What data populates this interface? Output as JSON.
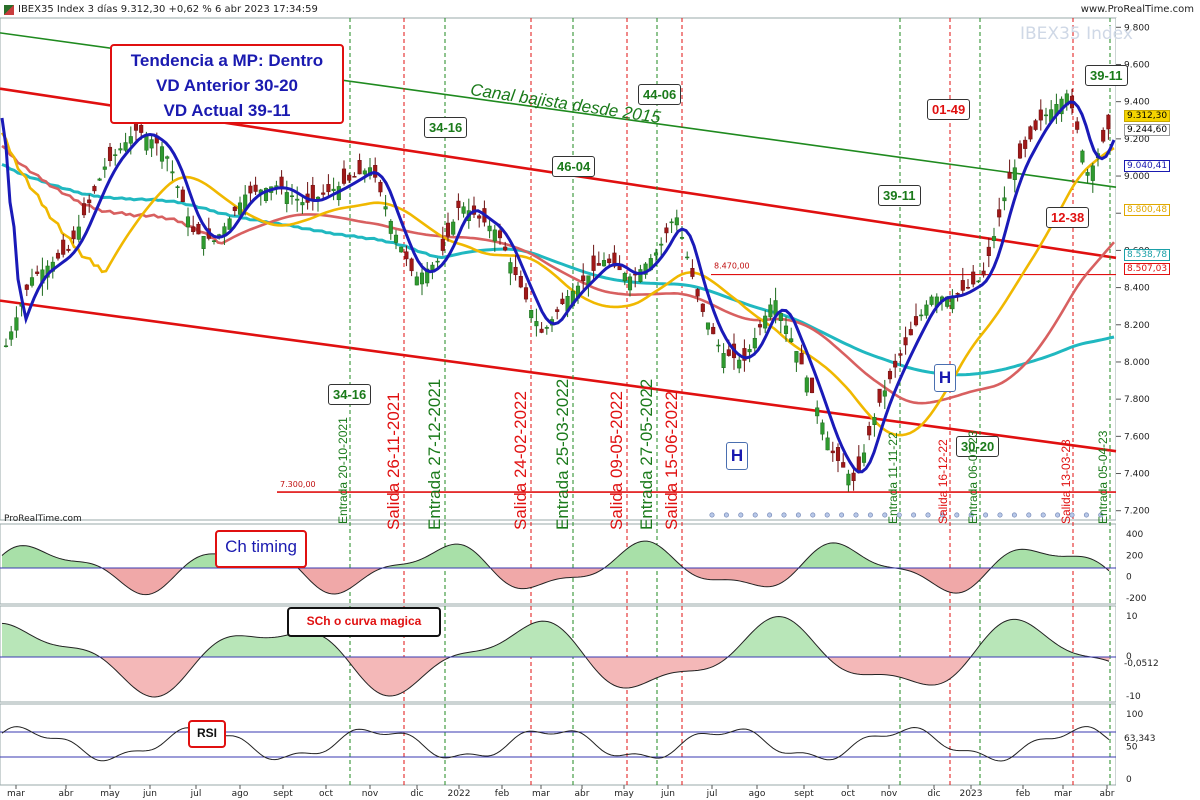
{
  "header": {
    "title": "IBEX35 Index 3 días 9.312,30 +0,62 % 6 abr 2023 17:34:59",
    "site": "www.ProRealTime.com"
  },
  "watermark": "IBEX35 Index",
  "source": "ProRealTime.com",
  "trend_box": {
    "line1": "Tendencia a MP: Dentro",
    "line2": "VD Anterior 30-20",
    "line3": "VD Actual 39-11"
  },
  "canal_label": "Canal bajista desde 2015",
  "cycle_labels": [
    {
      "text": "34-16",
      "color": "green"
    },
    {
      "text": "44-06",
      "color": "green"
    },
    {
      "text": "34-16",
      "color": "green"
    },
    {
      "text": "46-04",
      "color": "green"
    },
    {
      "text": "39-11",
      "color": "green"
    },
    {
      "text": "01-49",
      "color": "red"
    },
    {
      "text": "39-11",
      "color": "green"
    },
    {
      "text": "12-38",
      "color": "red"
    },
    {
      "text": "30-20",
      "color": "green"
    }
  ],
  "signals": [
    {
      "text": "Entrada 20-10-2021",
      "color": "green"
    },
    {
      "text": "Salida 26-11-2021",
      "color": "red"
    },
    {
      "text": "Entrada 27-12-2021",
      "color": "green"
    },
    {
      "text": "Salida 24-02-2022",
      "color": "red"
    },
    {
      "text": "Entrada 25-03-2022",
      "color": "green"
    },
    {
      "text": "Salida 09-05-2022",
      "color": "red"
    },
    {
      "text": "Entrada 27-05-2022",
      "color": "green"
    },
    {
      "text": "Salida 15-06-2022",
      "color": "red"
    },
    {
      "text": "Entrada 11-11-22",
      "color": "green"
    },
    {
      "text": "Salida 16-12-22",
      "color": "red"
    },
    {
      "text": "Entrada 06-01-23",
      "color": "green"
    },
    {
      "text": "Salida 13-03-23",
      "color": "red"
    },
    {
      "text": "Entrada 05-04-23",
      "color": "green"
    }
  ],
  "h_marks": [
    "H",
    "H"
  ],
  "level_labels": {
    "support": "7.300,00",
    "resistance": "8.470,00"
  },
  "price_tags": [
    {
      "text": "9.312,30",
      "bg": "#f5d400",
      "fg": "#000000"
    },
    {
      "text": "9.244,60",
      "bg": "#ffffff",
      "fg": "#000000"
    },
    {
      "text": "9.040,41",
      "bg": "#ffffff",
      "fg": "#1a1ab0"
    },
    {
      "text": "8.800,48",
      "bg": "#ffffff",
      "fg": "#e0a800"
    },
    {
      "text": "8.538,78",
      "bg": "#ffffff",
      "fg": "#1aa0a8"
    },
    {
      "text": "8.507,03",
      "bg": "#ffffff",
      "fg": "#e01010"
    }
  ],
  "indicators": {
    "ch_label": "Ch timing",
    "sch_label": "SCh o curva magica",
    "rsi_label": "RSI",
    "sch_value": "-0,0512",
    "rsi_value": "63,343"
  },
  "colors": {
    "up_candle": "#2f9a2f",
    "down_candle": "#a01818",
    "channel": "#e01010",
    "green_line": "#1f8a1f",
    "fast_avg": "#1a1ab8",
    "yellow_avg": "#f0b800",
    "salmon_avg": "#d86060",
    "cyan_avg": "#20b8c0"
  },
  "chart_data": {
    "type": "candlestick",
    "title": "IBEX35 Index 3 días",
    "y_ticks": [
      "9.800",
      "9.600",
      "9.400",
      "9.200",
      "9.000",
      "8.800",
      "8.600",
      "8.400",
      "8.200",
      "8.000",
      "7.800",
      "7.600",
      "7.400",
      "7.200"
    ],
    "x_ticks": [
      "mar",
      "abr",
      "may",
      "jun",
      "jul",
      "ago",
      "sept",
      "oct",
      "nov",
      "dic",
      "2022",
      "feb",
      "mar",
      "abr",
      "may",
      "jun",
      "jul",
      "ago",
      "sept",
      "oct",
      "nov",
      "dic",
      "2023",
      "feb",
      "mar",
      "abr"
    ],
    "ylim": [
      7150,
      9850
    ],
    "close_path": [
      [
        "2021-03-01",
        8050
      ],
      [
        "2021-03-20",
        8450
      ],
      [
        "2021-04-15",
        8600
      ],
      [
        "2021-05-10",
        9050
      ],
      [
        "2021-06-01",
        9250
      ],
      [
        "2021-06-20",
        9150
      ],
      [
        "2021-07-10",
        8700
      ],
      [
        "2021-07-25",
        8650
      ],
      [
        "2021-08-15",
        8900
      ],
      [
        "2021-09-05",
        8950
      ],
      [
        "2021-09-25",
        8850
      ],
      [
        "2021-10-20",
        8950
      ],
      [
        "2021-11-10",
        9050
      ],
      [
        "2021-11-26",
        8700
      ],
      [
        "2021-12-10",
        8450
      ],
      [
        "2021-12-27",
        8550
      ],
      [
        "2022-01-10",
        8850
      ],
      [
        "2022-02-05",
        8700
      ],
      [
        "2022-02-24",
        8350
      ],
      [
        "2022-03-08",
        8150
      ],
      [
        "2022-03-25",
        8350
      ],
      [
        "2022-04-20",
        8550
      ],
      [
        "2022-05-09",
        8450
      ],
      [
        "2022-05-27",
        8600
      ],
      [
        "2022-06-08",
        8800
      ],
      [
        "2022-06-25",
        8300
      ],
      [
        "2022-07-10",
        8050
      ],
      [
        "2022-07-25",
        8000
      ],
      [
        "2022-08-15",
        8350
      ],
      [
        "2022-09-05",
        7950
      ],
      [
        "2022-09-25",
        7500
      ],
      [
        "2022-10-10",
        7350
      ],
      [
        "2022-10-25",
        7750
      ],
      [
        "2022-11-11",
        8050
      ],
      [
        "2022-12-01",
        8350
      ],
      [
        "2022-12-16",
        8350
      ],
      [
        "2023-01-06",
        8450
      ],
      [
        "2023-01-25",
        9000
      ],
      [
        "2023-02-15",
        9300
      ],
      [
        "2023-03-06",
        9450
      ],
      [
        "2023-03-20",
        9000
      ],
      [
        "2023-04-06",
        9312.3
      ]
    ],
    "series": [
      {
        "name": "9.312,30",
        "last": 9312.3
      },
      {
        "name": "9.040,41",
        "last": 9040.41
      },
      {
        "name": "8.800,48",
        "last": 8800.48
      },
      {
        "name": "8.538,78",
        "last": 8538.78
      },
      {
        "name": "8.507,03",
        "last": 8507.03
      }
    ],
    "levels": [
      7300,
      8470
    ],
    "panels": [
      {
        "name": "Ch timing",
        "y_ticks": [
          "400",
          "200",
          "0",
          "-200"
        ]
      },
      {
        "name": "SCh o curva magica",
        "y_ticks": [
          "10",
          "0",
          "-10"
        ]
      },
      {
        "name": "RSI",
        "y_ticks": [
          "100",
          "50",
          "0"
        ]
      }
    ]
  }
}
